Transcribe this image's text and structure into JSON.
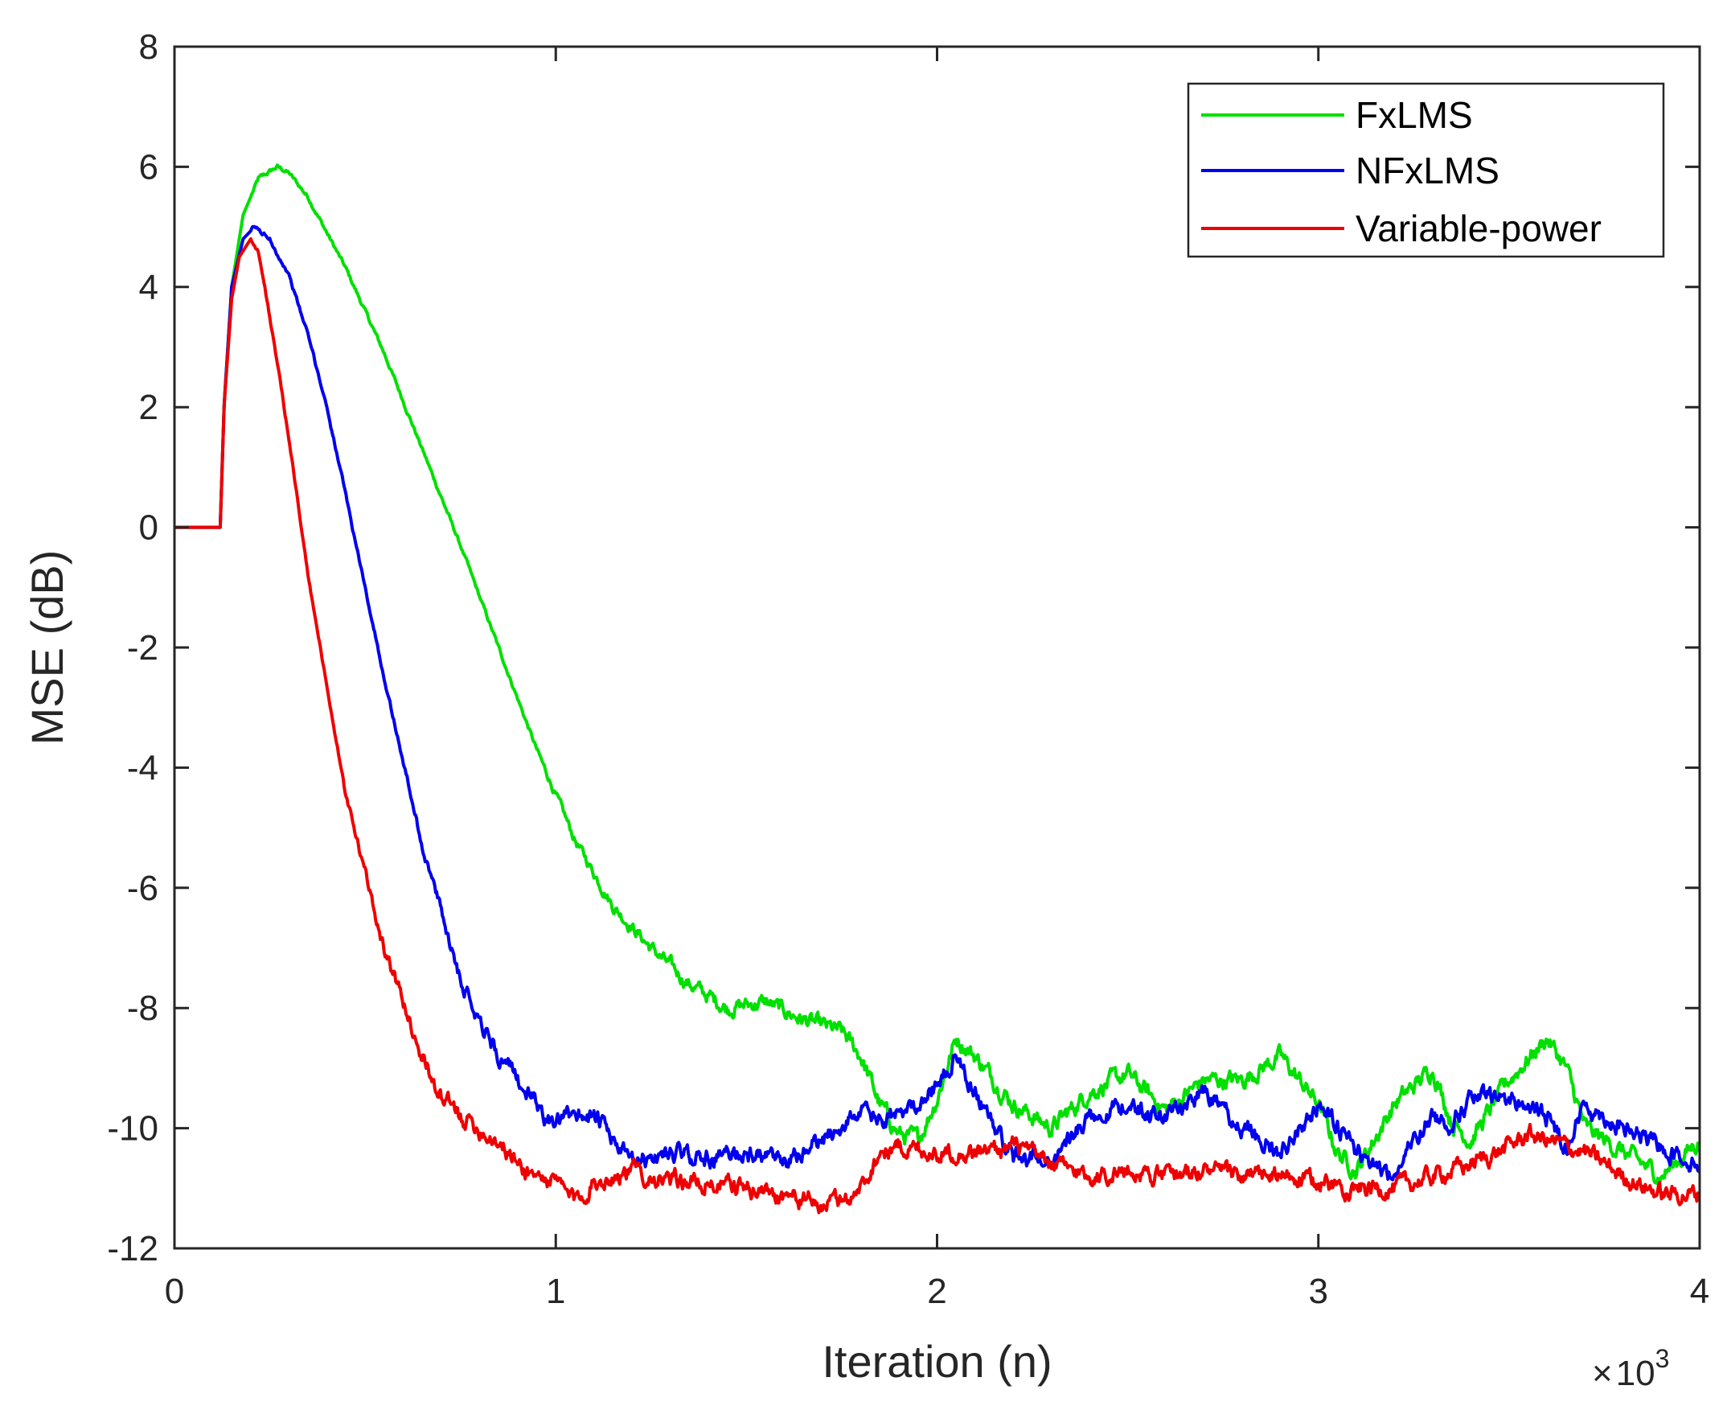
{
  "chart_data": {
    "type": "line",
    "title": "",
    "xlabel": "Iteration (n)",
    "ylabel": "MSE (dB)",
    "x_scale_prefix": "×",
    "x_scale_base": "10",
    "x_scale_exponent": "3",
    "xlim": [
      0,
      4
    ],
    "ylim": [
      -12,
      8
    ],
    "xticks": [
      0,
      1,
      2,
      3,
      4
    ],
    "xtick_labels": [
      "0",
      "1",
      "2",
      "3",
      "4"
    ],
    "yticks": [
      -12,
      -10,
      -8,
      -6,
      -4,
      -2,
      0,
      2,
      4,
      6,
      8
    ],
    "ytick_labels": [
      "-12",
      "-10",
      "-8",
      "-6",
      "-4",
      "-2",
      "0",
      "2",
      "4",
      "6",
      "8"
    ],
    "grid": false,
    "legend_position": "top-right",
    "noise_amplitude": 0.22,
    "series": [
      {
        "name": "FxLMS",
        "color": "#00e000",
        "x": [
          0,
          0.12,
          0.13,
          0.15,
          0.18,
          0.22,
          0.27,
          0.3,
          0.35,
          0.45,
          0.55,
          0.65,
          0.75,
          0.85,
          0.95,
          1.05,
          1.15,
          1.25,
          1.35,
          1.45,
          1.55,
          1.65,
          1.75,
          1.8,
          1.85,
          1.9,
          1.95,
          2.0,
          2.05,
          2.1,
          2.2,
          2.3,
          2.4,
          2.5,
          2.6,
          2.7,
          2.8,
          2.9,
          3.0,
          3.05,
          3.1,
          3.2,
          3.3,
          3.35,
          3.4,
          3.5,
          3.6,
          3.65,
          3.7,
          3.8,
          3.9,
          4.0
        ],
        "y": [
          0,
          0,
          2.0,
          4.0,
          5.2,
          5.8,
          6.0,
          5.9,
          5.5,
          4.3,
          2.9,
          1.3,
          -0.3,
          -2.0,
          -3.7,
          -5.2,
          -6.3,
          -7.0,
          -7.6,
          -8.0,
          -7.9,
          -8.2,
          -8.4,
          -8.8,
          -9.6,
          -10.1,
          -10.2,
          -9.5,
          -8.5,
          -8.8,
          -9.6,
          -10.0,
          -9.4,
          -9.1,
          -9.7,
          -9.2,
          -9.2,
          -8.8,
          -9.6,
          -10.4,
          -10.7,
          -9.6,
          -9.0,
          -9.9,
          -10.2,
          -9.2,
          -8.5,
          -9.0,
          -10.0,
          -10.4,
          -10.8,
          -10.2
        ]
      },
      {
        "name": "NFxLMS",
        "color": "#0000ee",
        "x": [
          0,
          0.12,
          0.13,
          0.15,
          0.18,
          0.21,
          0.25,
          0.3,
          0.35,
          0.4,
          0.45,
          0.55,
          0.65,
          0.75,
          0.85,
          0.95,
          1.0,
          1.05,
          1.1,
          1.2,
          1.3,
          1.4,
          1.5,
          1.6,
          1.7,
          1.8,
          1.85,
          1.9,
          2.0,
          2.05,
          2.1,
          2.2,
          2.3,
          2.4,
          2.5,
          2.6,
          2.7,
          2.8,
          2.9,
          3.0,
          3.1,
          3.2,
          3.25,
          3.3,
          3.35,
          3.4,
          3.5,
          3.6,
          3.65,
          3.7,
          3.8,
          3.9,
          4.0
        ],
        "y": [
          0,
          0,
          2.0,
          4.0,
          4.8,
          5.0,
          4.8,
          4.2,
          3.2,
          2.0,
          0.5,
          -2.5,
          -5.3,
          -7.5,
          -8.8,
          -9.6,
          -10.0,
          -9.7,
          -9.8,
          -10.6,
          -10.4,
          -10.5,
          -10.4,
          -10.6,
          -10.2,
          -9.7,
          -9.9,
          -9.8,
          -9.3,
          -8.8,
          -9.4,
          -10.5,
          -10.5,
          -9.8,
          -9.6,
          -9.8,
          -9.4,
          -10.0,
          -10.4,
          -9.6,
          -10.4,
          -10.8,
          -10.2,
          -9.8,
          -9.9,
          -9.5,
          -9.5,
          -9.8,
          -10.3,
          -9.6,
          -10.0,
          -10.3,
          -10.6
        ]
      },
      {
        "name": "Variable-power",
        "color": "#ee0000",
        "x": [
          0,
          0.12,
          0.13,
          0.15,
          0.17,
          0.2,
          0.22,
          0.25,
          0.3,
          0.35,
          0.45,
          0.55,
          0.65,
          0.7,
          0.75,
          0.8,
          0.85,
          0.9,
          0.95,
          1.0,
          1.05,
          1.1,
          1.2,
          1.3,
          1.4,
          1.5,
          1.6,
          1.7,
          1.75,
          1.8,
          1.85,
          1.9,
          2.0,
          2.1,
          2.2,
          2.3,
          2.4,
          2.5,
          2.6,
          2.7,
          2.8,
          2.9,
          3.0,
          3.1,
          3.2,
          3.3,
          3.4,
          3.5,
          3.55,
          3.6,
          3.7,
          3.8,
          3.9,
          4.0
        ],
        "y": [
          0,
          0,
          2.0,
          3.8,
          4.5,
          4.8,
          4.6,
          3.5,
          1.5,
          -0.8,
          -4.5,
          -7.0,
          -8.8,
          -9.5,
          -9.8,
          -10.0,
          -10.2,
          -10.6,
          -10.8,
          -10.9,
          -11.2,
          -10.9,
          -10.7,
          -10.9,
          -10.9,
          -11.0,
          -11.1,
          -11.3,
          -11.2,
          -11.0,
          -10.4,
          -10.3,
          -10.4,
          -10.4,
          -10.3,
          -10.6,
          -10.8,
          -10.7,
          -10.8,
          -10.7,
          -10.8,
          -10.8,
          -10.9,
          -11.0,
          -11.0,
          -10.8,
          -10.6,
          -10.3,
          -10.1,
          -10.2,
          -10.4,
          -10.8,
          -11.1,
          -11.1
        ]
      }
    ]
  }
}
